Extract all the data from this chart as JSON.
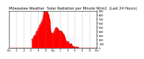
{
  "title": "Milwaukee Weather  Solar Radiation per Minute W/m2  (Last 24 Hours)",
  "title_fontsize": 3.8,
  "background_color": "#ffffff",
  "plot_bg_color": "#ffffff",
  "fill_color": "#ff0000",
  "line_color": "#cc0000",
  "grid_color": "#888888",
  "ylim": [
    0,
    900
  ],
  "yticks": [
    0,
    100,
    200,
    300,
    400,
    500,
    600,
    700,
    800,
    900
  ],
  "ytick_fontsize": 2.8,
  "xtick_fontsize": 2.5,
  "n_points": 1440,
  "hour_labels": [
    "12a",
    "2",
    "4",
    "6",
    "8",
    "10",
    "12p",
    "2",
    "4",
    "6",
    "8",
    "10",
    "12a"
  ]
}
